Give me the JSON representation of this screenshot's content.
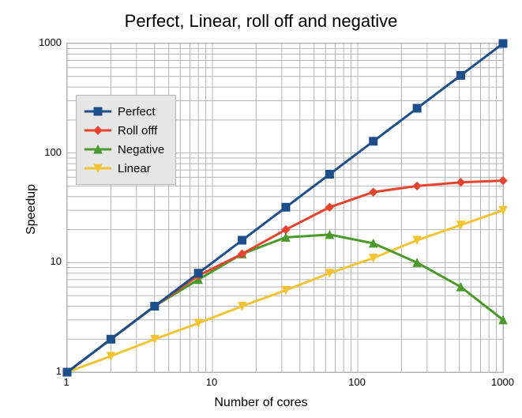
{
  "chart": {
    "type": "line",
    "title": "Perfect, Linear, roll off  and negative",
    "title_fontsize": 22,
    "xlabel": "Number of cores",
    "ylabel": "Speedup",
    "label_fontsize": 16,
    "background_color": "#ffffff",
    "grid_color": "#b4b4b4",
    "xscale": "log",
    "yscale": "log",
    "xlim": [
      1,
      1000
    ],
    "ylim": [
      1,
      1000
    ],
    "x_major_ticks": [
      1,
      10,
      100,
      1000
    ],
    "y_major_ticks": [
      1,
      10,
      100,
      1000
    ],
    "x_minor_tick_pattern": [
      2,
      3,
      4,
      5,
      6,
      7,
      8,
      9
    ],
    "line_width": 3,
    "marker_size": 10,
    "legend": {
      "position": "upper-left-inside",
      "background": "#e6e6e6",
      "border": "#b4b4b4",
      "fontsize": 15,
      "items": [
        {
          "key": "perfect",
          "label": "Perfect"
        },
        {
          "key": "rolloff",
          "label": "Roll offf"
        },
        {
          "key": "negative",
          "label": "Negative"
        },
        {
          "key": "linear",
          "label": "Linear"
        }
      ]
    },
    "x_values": [
      1,
      2,
      4,
      8,
      16,
      32,
      64,
      128,
      256,
      512,
      1000
    ],
    "series": {
      "perfect": {
        "label": "Perfect",
        "color": "#1d4f8c",
        "marker": "square",
        "y": [
          1,
          2,
          4,
          8,
          16,
          32,
          64,
          128,
          256,
          512,
          1000
        ]
      },
      "rolloff": {
        "label": "Roll offf",
        "color": "#e8432d",
        "marker": "diamond",
        "y": [
          1,
          2,
          4,
          7.6,
          12,
          20,
          32,
          44,
          50,
          54,
          56
        ]
      },
      "negative": {
        "label": "Negative",
        "color": "#4a9a2a",
        "marker": "triangle",
        "y": [
          1,
          2,
          4,
          7,
          12,
          17,
          18,
          15,
          10,
          6,
          3
        ]
      },
      "linear": {
        "label": "Linear",
        "color": "#f2c332",
        "marker": "tri_down",
        "y": [
          1,
          1.4,
          2,
          2.8,
          4,
          5.6,
          8,
          11,
          16,
          22,
          30
        ]
      }
    }
  }
}
